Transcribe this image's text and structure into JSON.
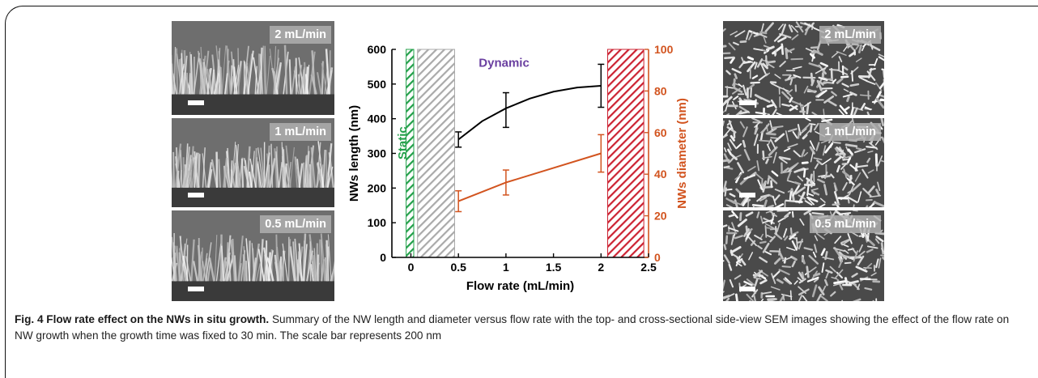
{
  "sem_left": [
    {
      "label": "2 mL/min"
    },
    {
      "label": "1 mL/min"
    },
    {
      "label": "0.5 mL/min"
    }
  ],
  "sem_right": [
    {
      "label": "2 mL/min"
    },
    {
      "label": "1 mL/min"
    },
    {
      "label": "0.5 mL/min"
    }
  ],
  "chart_data": {
    "type": "line",
    "xlabel": "Flow rate (mL/min)",
    "ylabel": "NWs length (nm)",
    "y2label": "NWs diameter (nm)",
    "xlim": [
      -0.2,
      2.5
    ],
    "ylim": [
      0,
      600
    ],
    "y2lim": [
      0,
      100
    ],
    "xticks": [
      "0",
      "0.5",
      "1",
      "1.5",
      "2",
      "2.5"
    ],
    "xtick_values": [
      0,
      0.5,
      1,
      1.5,
      2,
      2.5
    ],
    "yticks": [
      "0",
      "100",
      "200",
      "300",
      "400",
      "500",
      "600"
    ],
    "ytick_values": [
      0,
      100,
      200,
      300,
      400,
      500,
      600
    ],
    "y2ticks": [
      "0",
      "20",
      "40",
      "60",
      "80",
      "100"
    ],
    "y2tick_values": [
      0,
      20,
      40,
      60,
      80,
      100
    ],
    "series": [
      {
        "name": "NWs length",
        "axis": "left",
        "color": "#000000",
        "x": [
          0.5,
          1,
          2
        ],
        "y": [
          340,
          425,
          495
        ],
        "err": [
          22,
          50,
          62
        ],
        "curve_x": [
          0.5,
          0.75,
          1.0,
          1.25,
          1.5,
          1.75,
          2.0
        ],
        "curve_y": [
          340,
          393,
          430,
          458,
          478,
          490,
          495
        ]
      },
      {
        "name": "NWs diameter",
        "axis": "right",
        "color": "#d2541f",
        "x": [
          0.5,
          1,
          2
        ],
        "y": [
          27,
          36,
          50
        ],
        "err": [
          5,
          6,
          9
        ]
      }
    ],
    "regions": [
      {
        "label": "Static",
        "x0": -0.05,
        "x1": 0.03,
        "color": "#23a04a"
      },
      {
        "label": "",
        "x0": 0.07,
        "x1": 0.46,
        "color": "#aaaaaa"
      },
      {
        "label": "Dynamic",
        "color": "#6a3fa0"
      },
      {
        "label": "",
        "x0": 2.07,
        "x1": 2.45,
        "color": "#cc2232"
      }
    ],
    "colors": {
      "left_axis": "#000000",
      "right_axis": "#d2541f"
    }
  },
  "caption": {
    "title": "Fig. 4 Flow rate effect on the NWs in situ growth.",
    "text": "Summary of the NW length and diameter versus flow rate with the top- and cross-sectional side-view SEM images showing the effect of the flow rate on NW growth when the growth time was fixed to 30 min. The scale bar represents 200 nm"
  }
}
